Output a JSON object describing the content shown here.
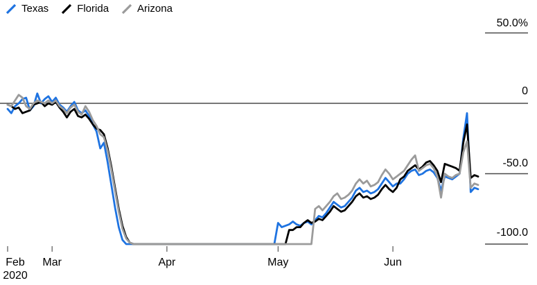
{
  "chart_data": {
    "type": "line",
    "title": "",
    "date_start": "2020-02-18",
    "date_end": "2020-06-24",
    "x_unit": "day",
    "grid": "none",
    "legend_position": "top-left",
    "zero_line": true,
    "ylim": [
      -105,
      55
    ],
    "yticks": [
      {
        "value": 50,
        "label": "50.0%"
      },
      {
        "value": 0,
        "label": "0"
      },
      {
        "value": -50,
        "label": "-50.0"
      },
      {
        "value": -100,
        "label": "-100.0"
      }
    ],
    "xticks": [
      {
        "day": 0,
        "label": "Feb",
        "sublabel": "2020"
      },
      {
        "day": 12,
        "label": "Mar",
        "sublabel": ""
      },
      {
        "day": 43,
        "label": "Apr",
        "sublabel": ""
      },
      {
        "day": 73,
        "label": "May",
        "sublabel": ""
      },
      {
        "day": 104,
        "label": "Jun",
        "sublabel": ""
      }
    ],
    "series": [
      {
        "id": "texas",
        "name": "Texas",
        "color": "#1e73e1",
        "values": [
          -4,
          -7,
          -2,
          0,
          3,
          4,
          -5,
          -2,
          7,
          0,
          3,
          5,
          1,
          4,
          -1,
          -3,
          -6,
          -2,
          1,
          -5,
          -7,
          -5,
          -9,
          -15,
          -20,
          -32,
          -28,
          -42,
          -58,
          -74,
          -88,
          -97,
          -100,
          -100,
          -100,
          -100,
          -100,
          -100,
          -100,
          -100,
          -100,
          -100,
          -100,
          -100,
          -100,
          -100,
          -100,
          -100,
          -100,
          -100,
          -100,
          -100,
          -100,
          -100,
          -100,
          -100,
          -100,
          -100,
          -100,
          -100,
          -100,
          -100,
          -100,
          -100,
          -100,
          -100,
          -100,
          -100,
          -100,
          -100,
          -100,
          -100,
          -100,
          -85,
          -88,
          -87,
          -86,
          -84,
          -86,
          -87,
          -85,
          -84,
          -86,
          -83,
          -80,
          -81,
          -78,
          -74,
          -70,
          -72,
          -74,
          -73,
          -70,
          -67,
          -62,
          -60,
          -63,
          -62,
          -64,
          -63,
          -61,
          -57,
          -53,
          -56,
          -59,
          -57,
          -57,
          -54,
          -50,
          -48,
          -47,
          -51,
          -50,
          -48,
          -47,
          -49,
          -53,
          -62,
          -52,
          -53,
          -54,
          -52,
          -50,
          -25,
          -7,
          -63,
          -60,
          -61
        ]
      },
      {
        "id": "florida",
        "name": "Florida",
        "color": "#000000",
        "values": [
          -1,
          -2,
          -4,
          -3,
          -7,
          -6,
          -5,
          -1,
          0,
          1,
          -2,
          0,
          -1,
          1,
          -3,
          -6,
          -10,
          -6,
          -4,
          -9,
          -10,
          -8,
          -11,
          -15,
          -18,
          -19,
          -22,
          -32,
          -45,
          -60,
          -75,
          -87,
          -95,
          -99,
          -100,
          -100,
          -100,
          -100,
          -100,
          -100,
          -100,
          -100,
          -100,
          -100,
          -100,
          -100,
          -100,
          -100,
          -100,
          -100,
          -100,
          -100,
          -100,
          -100,
          -100,
          -100,
          -100,
          -100,
          -100,
          -100,
          -100,
          -100,
          -100,
          -100,
          -100,
          -100,
          -100,
          -100,
          -100,
          -100,
          -100,
          -100,
          -100,
          -100,
          -100,
          -100,
          -90,
          -90,
          -88,
          -88,
          -85,
          -83,
          -85,
          -84,
          -82,
          -83,
          -80,
          -77,
          -73,
          -75,
          -77,
          -76,
          -73,
          -70,
          -66,
          -64,
          -67,
          -66,
          -68,
          -67,
          -65,
          -61,
          -58,
          -61,
          -63,
          -60,
          -54,
          -52,
          -48,
          -46,
          -44,
          -47,
          -45,
          -42,
          -41,
          -44,
          -48,
          -56,
          -43,
          -44,
          -45,
          -46,
          -48,
          -28,
          -15,
          -53,
          -51,
          -52
        ]
      },
      {
        "id": "arizona",
        "name": "Arizona",
        "color": "#9b9b9b",
        "values": [
          -1,
          -2,
          2,
          6,
          4,
          -2,
          -4,
          0,
          2,
          1,
          0,
          2,
          0,
          2,
          -2,
          -4,
          -7,
          -3,
          -1,
          -6,
          -8,
          -2,
          -6,
          -12,
          -16,
          -22,
          -24,
          -34,
          -47,
          -62,
          -77,
          -89,
          -96,
          -99,
          -100,
          -100,
          -100,
          -100,
          -100,
          -100,
          -100,
          -100,
          -100,
          -100,
          -100,
          -100,
          -100,
          -100,
          -100,
          -100,
          -100,
          -100,
          -100,
          -100,
          -100,
          -100,
          -100,
          -100,
          -100,
          -100,
          -100,
          -100,
          -100,
          -100,
          -100,
          -100,
          -100,
          -100,
          -100,
          -100,
          -100,
          -100,
          -100,
          -100,
          -100,
          -100,
          -100,
          -100,
          -100,
          -100,
          -100,
          -100,
          -100,
          -75,
          -73,
          -76,
          -73,
          -70,
          -66,
          -64,
          -68,
          -67,
          -65,
          -62,
          -57,
          -54,
          -57,
          -55,
          -59,
          -58,
          -56,
          -51,
          -47,
          -50,
          -54,
          -52,
          -50,
          -48,
          -44,
          -40,
          -37,
          -48,
          -46,
          -44,
          -43,
          -46,
          -52,
          -67,
          -50,
          -52,
          -53,
          -51,
          -50,
          -35,
          -27,
          -60,
          -57,
          -58
        ]
      }
    ]
  },
  "colors": {
    "background": "#ffffff",
    "axis_line": "#4a4a4a",
    "tick_mark": "#333333",
    "text": "#000000"
  }
}
